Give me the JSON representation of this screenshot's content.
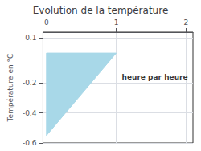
{
  "chart_data": {
    "type": "area",
    "title": "Evolution de la température",
    "y_label": "Température en °C",
    "x": [
      0,
      0,
      1,
      0
    ],
    "values": [
      0,
      -0.55,
      0,
      0
    ],
    "color": "#a8d8e8",
    "xlim": [
      -0.05,
      2.1
    ],
    "xticks": [
      0,
      1,
      2
    ],
    "ylim": [
      -0.6,
      0.14
    ],
    "yticks": [
      0.1,
      -0.2,
      -0.4,
      -0.6
    ],
    "grid": true,
    "annotations": [
      {
        "text": "heure par heure",
        "x": 1.08,
        "y": -0.16
      }
    ]
  }
}
